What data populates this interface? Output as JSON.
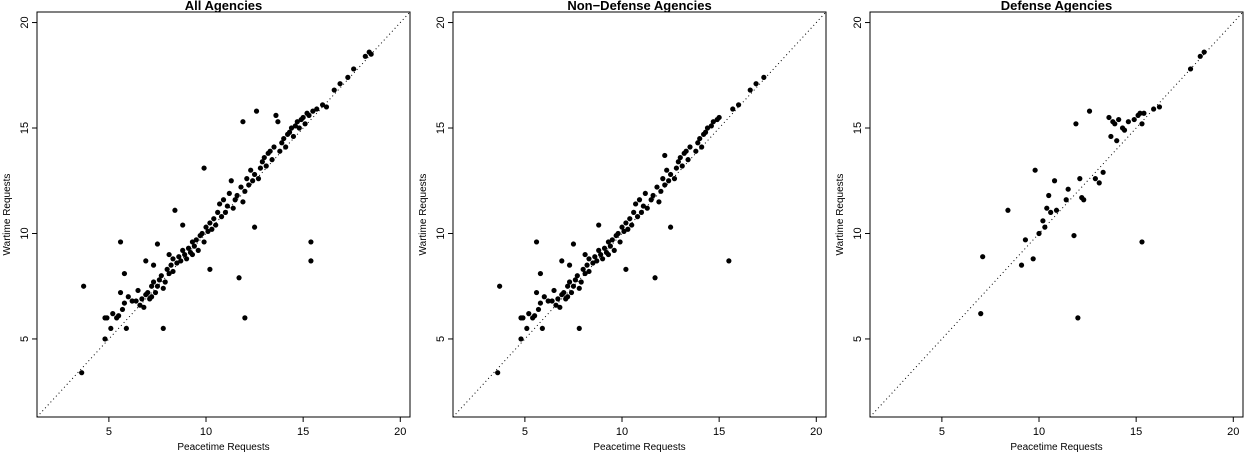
{
  "chart_data": [
    {
      "type": "scatter",
      "title": "All Agencies",
      "xlabel": "Peacetime Requests",
      "ylabel": "Wartime Requests",
      "xlim": [
        1.3,
        20.5
      ],
      "ylim": [
        1.3,
        20.5
      ],
      "xticks": [
        5,
        10,
        15,
        20
      ],
      "yticks": [
        5,
        10,
        15,
        20
      ],
      "reference_line": "y = x (dotted)",
      "grid": false,
      "legend": "none",
      "points": [
        [
          3.6,
          3.4
        ],
        [
          3.7,
          7.5
        ],
        [
          4.8,
          5.0
        ],
        [
          4.8,
          6.0
        ],
        [
          4.9,
          6.0
        ],
        [
          5.1,
          5.5
        ],
        [
          5.2,
          6.2
        ],
        [
          5.4,
          6.0
        ],
        [
          5.5,
          6.1
        ],
        [
          5.6,
          7.2
        ],
        [
          5.6,
          9.6
        ],
        [
          5.7,
          6.4
        ],
        [
          5.8,
          6.7
        ],
        [
          5.8,
          8.1
        ],
        [
          5.9,
          5.5
        ],
        [
          6.0,
          7.0
        ],
        [
          6.2,
          6.8
        ],
        [
          6.4,
          6.8
        ],
        [
          6.5,
          7.3
        ],
        [
          6.6,
          6.6
        ],
        [
          6.7,
          6.9
        ],
        [
          6.8,
          6.5
        ],
        [
          6.9,
          7.1
        ],
        [
          6.9,
          8.7
        ],
        [
          7.0,
          7.2
        ],
        [
          7.1,
          6.9
        ],
        [
          7.2,
          7.0
        ],
        [
          7.2,
          7.5
        ],
        [
          7.3,
          7.7
        ],
        [
          7.3,
          8.5
        ],
        [
          7.4,
          7.2
        ],
        [
          7.5,
          7.5
        ],
        [
          7.5,
          9.5
        ],
        [
          7.6,
          7.8
        ],
        [
          7.7,
          8.0
        ],
        [
          7.8,
          5.5
        ],
        [
          7.8,
          7.4
        ],
        [
          7.9,
          7.7
        ],
        [
          8.0,
          8.3
        ],
        [
          8.1,
          8.1
        ],
        [
          8.1,
          9.0
        ],
        [
          8.2,
          8.5
        ],
        [
          8.3,
          8.2
        ],
        [
          8.3,
          8.8
        ],
        [
          8.4,
          11.1
        ],
        [
          8.5,
          8.6
        ],
        [
          8.6,
          8.9
        ],
        [
          8.7,
          8.7
        ],
        [
          8.8,
          9.2
        ],
        [
          8.8,
          10.4
        ],
        [
          8.9,
          9.0
        ],
        [
          9.0,
          8.8
        ],
        [
          9.1,
          9.3
        ],
        [
          9.2,
          9.1
        ],
        [
          9.3,
          9.6
        ],
        [
          9.3,
          9.0
        ],
        [
          9.4,
          9.4
        ],
        [
          9.5,
          9.7
        ],
        [
          9.6,
          9.2
        ],
        [
          9.7,
          9.9
        ],
        [
          9.8,
          10.0
        ],
        [
          9.9,
          9.6
        ],
        [
          9.9,
          13.1
        ],
        [
          10.0,
          10.3
        ],
        [
          10.1,
          10.1
        ],
        [
          10.2,
          8.3
        ],
        [
          10.2,
          10.5
        ],
        [
          10.3,
          10.2
        ],
        [
          10.4,
          10.7
        ],
        [
          10.5,
          10.4
        ],
        [
          10.6,
          11.0
        ],
        [
          10.7,
          11.4
        ],
        [
          10.8,
          10.8
        ],
        [
          10.9,
          11.6
        ],
        [
          11.0,
          11.0
        ],
        [
          11.1,
          11.3
        ],
        [
          11.2,
          11.9
        ],
        [
          11.3,
          12.5
        ],
        [
          11.4,
          11.2
        ],
        [
          11.5,
          11.6
        ],
        [
          11.6,
          11.8
        ],
        [
          11.7,
          7.9
        ],
        [
          11.8,
          12.2
        ],
        [
          11.9,
          15.3
        ],
        [
          11.9,
          11.5
        ],
        [
          12.0,
          6.0
        ],
        [
          12.0,
          12.0
        ],
        [
          12.1,
          12.6
        ],
        [
          12.2,
          12.3
        ],
        [
          12.3,
          13.0
        ],
        [
          12.4,
          12.5
        ],
        [
          12.5,
          10.3
        ],
        [
          12.5,
          12.8
        ],
        [
          12.6,
          15.8
        ],
        [
          12.7,
          12.6
        ],
        [
          12.8,
          13.1
        ],
        [
          12.9,
          13.4
        ],
        [
          13.0,
          13.6
        ],
        [
          13.1,
          13.2
        ],
        [
          13.2,
          13.8
        ],
        [
          13.3,
          13.9
        ],
        [
          13.4,
          13.5
        ],
        [
          13.5,
          14.1
        ],
        [
          13.6,
          15.6
        ],
        [
          13.7,
          15.3
        ],
        [
          13.8,
          13.9
        ],
        [
          13.9,
          14.3
        ],
        [
          14.0,
          14.5
        ],
        [
          14.1,
          14.1
        ],
        [
          14.2,
          14.7
        ],
        [
          14.3,
          14.8
        ],
        [
          14.4,
          15.0
        ],
        [
          14.5,
          14.6
        ],
        [
          14.6,
          15.1
        ],
        [
          14.7,
          15.3
        ],
        [
          14.8,
          15.0
        ],
        [
          14.9,
          15.4
        ],
        [
          15.0,
          15.5
        ],
        [
          15.1,
          15.2
        ],
        [
          15.2,
          15.7
        ],
        [
          15.3,
          15.6
        ],
        [
          15.4,
          9.6
        ],
        [
          15.4,
          8.7
        ],
        [
          15.5,
          15.8
        ],
        [
          15.7,
          15.9
        ],
        [
          16.0,
          16.1
        ],
        [
          16.2,
          16.0
        ],
        [
          16.6,
          16.8
        ],
        [
          16.9,
          17.1
        ],
        [
          17.3,
          17.4
        ],
        [
          17.6,
          17.8
        ],
        [
          18.2,
          18.4
        ],
        [
          18.4,
          18.6
        ],
        [
          18.5,
          18.5
        ]
      ]
    },
    {
      "type": "scatter",
      "title": "Non−Defense Agencies",
      "xlabel": "Peacetime Requests",
      "ylabel": "Wartime Requests",
      "xlim": [
        1.3,
        20.5
      ],
      "ylim": [
        1.3,
        20.5
      ],
      "xticks": [
        5,
        10,
        15,
        20
      ],
      "yticks": [
        5,
        10,
        15,
        20
      ],
      "reference_line": "y = x (dotted)",
      "grid": false,
      "legend": "none",
      "points": [
        [
          3.6,
          3.4
        ],
        [
          3.7,
          7.5
        ],
        [
          4.8,
          5.0
        ],
        [
          4.8,
          6.0
        ],
        [
          4.9,
          6.0
        ],
        [
          5.1,
          5.5
        ],
        [
          5.2,
          6.2
        ],
        [
          5.4,
          6.0
        ],
        [
          5.5,
          6.1
        ],
        [
          5.6,
          7.2
        ],
        [
          5.6,
          9.6
        ],
        [
          5.7,
          6.4
        ],
        [
          5.8,
          6.7
        ],
        [
          5.8,
          8.1
        ],
        [
          5.9,
          5.5
        ],
        [
          6.0,
          7.0
        ],
        [
          6.2,
          6.8
        ],
        [
          6.4,
          6.8
        ],
        [
          6.5,
          7.3
        ],
        [
          6.6,
          6.6
        ],
        [
          6.7,
          6.9
        ],
        [
          6.8,
          6.5
        ],
        [
          6.9,
          7.1
        ],
        [
          6.9,
          8.7
        ],
        [
          7.0,
          7.2
        ],
        [
          7.1,
          6.9
        ],
        [
          7.2,
          7.0
        ],
        [
          7.2,
          7.5
        ],
        [
          7.3,
          7.7
        ],
        [
          7.3,
          8.5
        ],
        [
          7.4,
          7.2
        ],
        [
          7.5,
          7.5
        ],
        [
          7.5,
          9.5
        ],
        [
          7.6,
          7.8
        ],
        [
          7.7,
          8.0
        ],
        [
          7.8,
          5.5
        ],
        [
          7.8,
          7.4
        ],
        [
          7.9,
          7.7
        ],
        [
          8.0,
          8.3
        ],
        [
          8.1,
          8.1
        ],
        [
          8.1,
          9.0
        ],
        [
          8.2,
          8.5
        ],
        [
          8.3,
          8.2
        ],
        [
          8.3,
          8.8
        ],
        [
          8.5,
          8.6
        ],
        [
          8.6,
          8.9
        ],
        [
          8.7,
          8.7
        ],
        [
          8.8,
          9.2
        ],
        [
          8.8,
          10.4
        ],
        [
          8.9,
          9.0
        ],
        [
          9.0,
          8.8
        ],
        [
          9.1,
          9.3
        ],
        [
          9.2,
          9.1
        ],
        [
          9.3,
          9.6
        ],
        [
          9.3,
          9.0
        ],
        [
          9.4,
          9.4
        ],
        [
          9.5,
          9.7
        ],
        [
          9.6,
          9.2
        ],
        [
          9.7,
          9.9
        ],
        [
          9.8,
          10.0
        ],
        [
          9.9,
          9.6
        ],
        [
          10.0,
          10.3
        ],
        [
          10.1,
          10.1
        ],
        [
          10.2,
          8.3
        ],
        [
          10.2,
          10.5
        ],
        [
          10.3,
          10.2
        ],
        [
          10.4,
          10.7
        ],
        [
          10.5,
          10.4
        ],
        [
          10.6,
          11.0
        ],
        [
          10.7,
          11.4
        ],
        [
          10.8,
          10.8
        ],
        [
          10.9,
          11.6
        ],
        [
          11.0,
          11.0
        ],
        [
          11.1,
          11.3
        ],
        [
          11.2,
          11.9
        ],
        [
          11.3,
          11.2
        ],
        [
          11.5,
          11.6
        ],
        [
          11.6,
          11.8
        ],
        [
          11.7,
          7.9
        ],
        [
          11.8,
          12.2
        ],
        [
          11.9,
          11.5
        ],
        [
          12.0,
          12.0
        ],
        [
          12.1,
          12.6
        ],
        [
          12.2,
          12.3
        ],
        [
          12.2,
          13.7
        ],
        [
          12.3,
          13.0
        ],
        [
          12.4,
          12.5
        ],
        [
          12.5,
          10.3
        ],
        [
          12.5,
          12.8
        ],
        [
          12.7,
          12.6
        ],
        [
          12.8,
          13.1
        ],
        [
          12.9,
          13.4
        ],
        [
          13.0,
          13.6
        ],
        [
          13.1,
          13.2
        ],
        [
          13.2,
          13.8
        ],
        [
          13.3,
          13.9
        ],
        [
          13.4,
          13.5
        ],
        [
          13.5,
          14.1
        ],
        [
          13.8,
          13.9
        ],
        [
          13.9,
          14.3
        ],
        [
          14.0,
          14.5
        ],
        [
          14.1,
          14.1
        ],
        [
          14.2,
          14.7
        ],
        [
          14.3,
          14.8
        ],
        [
          14.4,
          15.0
        ],
        [
          14.6,
          15.1
        ],
        [
          14.7,
          15.3
        ],
        [
          14.9,
          15.4
        ],
        [
          15.0,
          15.5
        ],
        [
          15.5,
          8.7
        ],
        [
          15.7,
          15.9
        ],
        [
          16.0,
          16.1
        ],
        [
          16.6,
          16.8
        ],
        [
          16.9,
          17.1
        ],
        [
          17.3,
          17.4
        ]
      ]
    },
    {
      "type": "scatter",
      "title": "Defense Agencies",
      "xlabel": "Peacetime Requests",
      "ylabel": "Wartime Requests",
      "xlim": [
        1.3,
        20.5
      ],
      "ylim": [
        1.3,
        20.5
      ],
      "xticks": [
        5,
        10,
        15,
        20
      ],
      "yticks": [
        5,
        10,
        15,
        20
      ],
      "reference_line": "y = x (dotted)",
      "grid": false,
      "legend": "none",
      "points": [
        [
          7.0,
          6.2
        ],
        [
          7.1,
          8.9
        ],
        [
          8.4,
          11.1
        ],
        [
          9.1,
          8.5
        ],
        [
          9.3,
          9.7
        ],
        [
          9.7,
          8.8
        ],
        [
          9.8,
          13.0
        ],
        [
          10.0,
          10.0
        ],
        [
          10.2,
          10.6
        ],
        [
          10.3,
          10.3
        ],
        [
          10.4,
          11.2
        ],
        [
          10.5,
          11.8
        ],
        [
          10.6,
          11.0
        ],
        [
          10.8,
          12.5
        ],
        [
          10.9,
          11.1
        ],
        [
          11.4,
          11.6
        ],
        [
          11.5,
          12.1
        ],
        [
          11.8,
          9.9
        ],
        [
          11.9,
          15.2
        ],
        [
          12.0,
          6.0
        ],
        [
          12.1,
          12.6
        ],
        [
          12.2,
          11.7
        ],
        [
          12.3,
          11.6
        ],
        [
          12.6,
          15.8
        ],
        [
          12.9,
          12.6
        ],
        [
          13.1,
          12.4
        ],
        [
          13.3,
          12.9
        ],
        [
          13.6,
          15.5
        ],
        [
          13.7,
          14.6
        ],
        [
          13.8,
          15.3
        ],
        [
          13.9,
          15.2
        ],
        [
          14.0,
          14.4
        ],
        [
          14.1,
          15.4
        ],
        [
          14.3,
          15.0
        ],
        [
          14.4,
          14.9
        ],
        [
          14.6,
          15.3
        ],
        [
          14.9,
          15.4
        ],
        [
          15.1,
          15.6
        ],
        [
          15.2,
          15.7
        ],
        [
          15.3,
          9.6
        ],
        [
          15.3,
          15.2
        ],
        [
          15.4,
          15.7
        ],
        [
          15.9,
          15.9
        ],
        [
          16.2,
          16.0
        ],
        [
          17.8,
          17.8
        ],
        [
          18.3,
          18.4
        ],
        [
          18.5,
          18.6
        ]
      ]
    }
  ]
}
